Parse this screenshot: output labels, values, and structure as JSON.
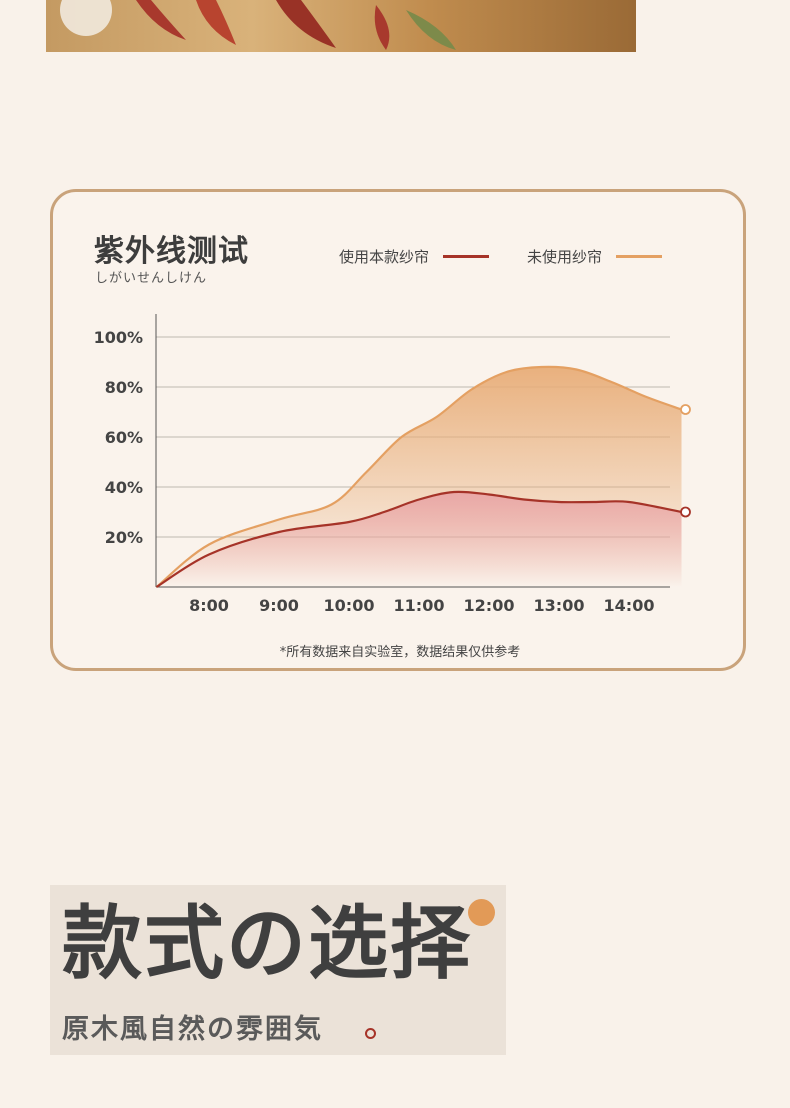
{
  "chart_data": {
    "type": "area",
    "title": "紫外线测试",
    "subtitle": "しがいせんしけん",
    "x_labels": [
      "8:00",
      "9:00",
      "10:00",
      "11:00",
      "12:00",
      "13:00",
      "14:00"
    ],
    "y_labels": [
      "20%",
      "40%",
      "60%",
      "80%",
      "100%"
    ],
    "ylim": [
      0,
      100
    ],
    "x_range": [
      "7:15",
      "14:45"
    ],
    "grid": true,
    "legend_position": "top-right",
    "series": [
      {
        "name": "使用本款纱帘",
        "color": "#a63328",
        "fill_top": "#e9a5a5",
        "x": [
          "7:15",
          "8:00",
          "9:00",
          "10:00",
          "10:30",
          "11:00",
          "11:30",
          "12:00",
          "12:30",
          "13:00",
          "13:30",
          "14:00",
          "14:45"
        ],
        "y": [
          0,
          13,
          22,
          26,
          30,
          35,
          38,
          37,
          35,
          34,
          34,
          34,
          30
        ]
      },
      {
        "name": "未使用纱帘",
        "color": "#e4a062",
        "fill_top": "#e8ad78",
        "x": [
          "7:15",
          "8:00",
          "9:00",
          "9:45",
          "10:15",
          "10:45",
          "11:15",
          "11:45",
          "12:15",
          "12:45",
          "13:15",
          "13:45",
          "14:15",
          "14:45"
        ],
        "y": [
          0,
          17,
          27,
          33,
          46,
          60,
          68,
          79,
          86,
          88,
          87,
          82,
          76,
          71
        ]
      }
    ]
  },
  "note": "*所有数据来自实验室，数据结果仅供参考",
  "promo": {
    "title": "款式の选择",
    "subtitle": "原木風自然の雰囲気"
  }
}
